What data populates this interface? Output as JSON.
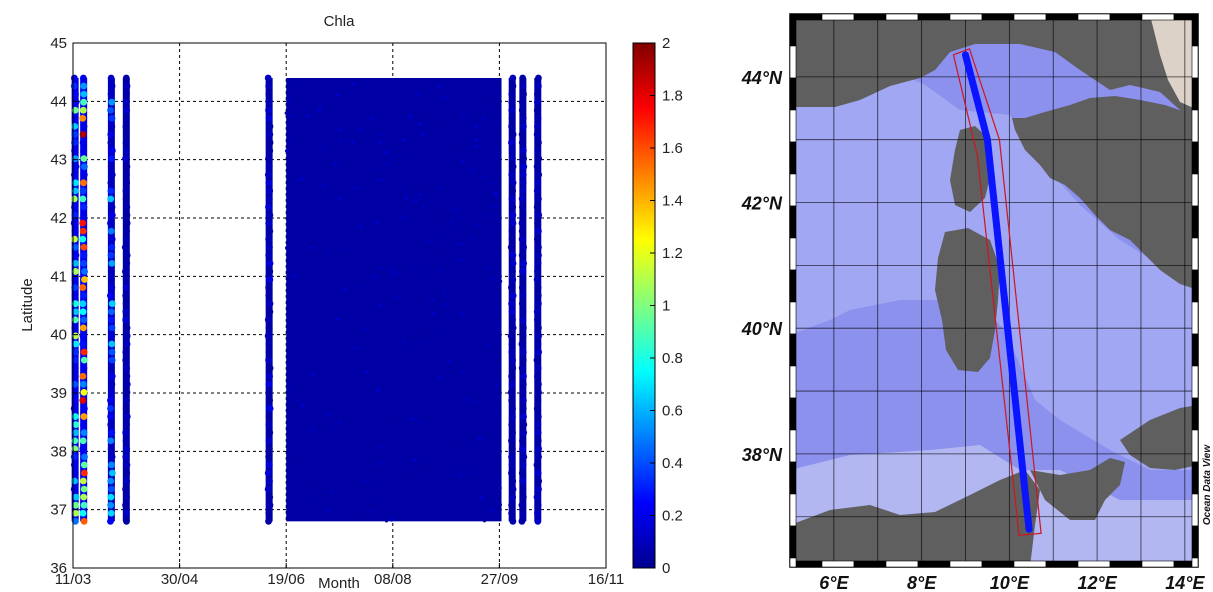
{
  "chart_data": [
    {
      "type": "scatter",
      "title": "Chla",
      "xlabel": "Month",
      "ylabel": "Latitude",
      "x_tick_labels": [
        "11/03",
        "30/04",
        "19/06",
        "08/08",
        "27/09",
        "16/11"
      ],
      "x_tick_dates": [
        "2012-03-11",
        "2012-04-30",
        "2012-06-19",
        "2012-08-08",
        "2012-09-27",
        "2012-11-16"
      ],
      "xlim": [
        "2012-03-11",
        "2012-11-16"
      ],
      "ylim": [
        36,
        45
      ],
      "y_ticks": [
        36,
        37,
        38,
        39,
        40,
        41,
        42,
        43,
        44,
        45
      ],
      "grid": true,
      "colormap": "jet",
      "colorbar": {
        "range": [
          0,
          2
        ],
        "ticks": [
          "0",
          "0.2",
          "0.4",
          "0.6",
          "0.8",
          "1",
          "1.2",
          "1.4",
          "1.6",
          "1.8",
          "2"
        ]
      },
      "tracks": [
        {
          "date": "2012-03-12",
          "lat_range": [
            36.8,
            44.4
          ],
          "chla_range": [
            0.2,
            1.2
          ]
        },
        {
          "date": "2012-03-16",
          "lat_range": [
            36.8,
            44.4
          ],
          "chla_range": [
            0.2,
            2.0
          ]
        },
        {
          "date": "2012-03-29",
          "lat_range": [
            36.8,
            44.4
          ],
          "chla_range": [
            0.1,
            0.7
          ]
        },
        {
          "date": "2012-04-05",
          "lat_range": [
            36.8,
            44.4
          ],
          "chla_range": [
            0.05,
            0.15
          ]
        },
        {
          "date": "2012-06-11",
          "lat_range": [
            36.8,
            44.4
          ],
          "chla_range": [
            0.05,
            0.2
          ]
        },
        {
          "date": "2012-10-03",
          "lat_range": [
            36.8,
            44.4
          ],
          "chla_range": [
            0.05,
            0.15
          ]
        },
        {
          "date": "2012-10-08",
          "lat_range": [
            36.8,
            44.4
          ],
          "chla_range": [
            0.05,
            0.15
          ]
        },
        {
          "date": "2012-10-15",
          "lat_range": [
            36.8,
            44.4
          ],
          "chla_range": [
            0.05,
            0.15
          ]
        }
      ],
      "dense_block": {
        "date_range": [
          "2012-06-19",
          "2012-09-28"
        ],
        "lat_range": [
          36.8,
          44.4
        ],
        "chla_typical": 0.05
      }
    },
    {
      "type": "map",
      "x_tick_labels": [
        "6°E",
        "8°E",
        "10°E",
        "12°E",
        "14°E"
      ],
      "x_tick_values": [
        6,
        8,
        10,
        12,
        14
      ],
      "y_tick_labels": [
        "38°N",
        "40°N",
        "42°N",
        "44°N"
      ],
      "y_tick_values": [
        38,
        40,
        42,
        44
      ],
      "xlim": [
        5,
        14.3
      ],
      "ylim": [
        36.2,
        45
      ],
      "watermark": "Ocean Data View",
      "route": {
        "start": [
          9.0,
          44.35
        ],
        "bend": [
          9.5,
          43.0
        ],
        "end": [
          10.45,
          36.8
        ]
      },
      "colors": {
        "land": "#5f5f5f",
        "sea": "#8c91ee",
        "route": "#0a14ff",
        "box": "#d0141e"
      }
    }
  ]
}
